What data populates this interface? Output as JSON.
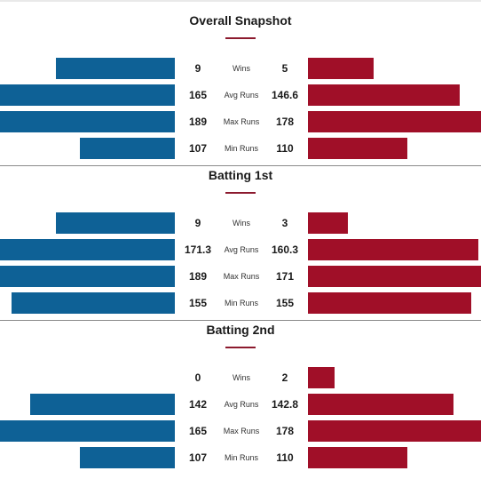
{
  "colors": {
    "left_team": "#0e6196",
    "right_team": "#a00f28",
    "title_accent": "#8c1a2e"
  },
  "chart_data": [
    {
      "type": "bar",
      "title": "Overall Snapshot",
      "categories": [
        "Wins",
        "Avg Runs",
        "Max Runs",
        "Min Runs"
      ],
      "series": [
        {
          "values": [
            9,
            165,
            189,
            107
          ]
        },
        {
          "values": [
            5,
            146.6,
            178,
            110
          ]
        }
      ]
    },
    {
      "type": "bar",
      "title": "Batting 1st",
      "categories": [
        "Wins",
        "Avg Runs",
        "Max Runs",
        "Min Runs"
      ],
      "series": [
        {
          "values": [
            9,
            171.3,
            189,
            155
          ]
        },
        {
          "values": [
            3,
            160.3,
            171,
            155
          ]
        }
      ]
    },
    {
      "type": "bar",
      "title": "Batting 2nd",
      "categories": [
        "Wins",
        "Avg Runs",
        "Max Runs",
        "Min Runs"
      ],
      "series": [
        {
          "values": [
            0,
            142,
            165,
            107
          ]
        },
        {
          "values": [
            2,
            142.8,
            178,
            110
          ]
        }
      ]
    }
  ]
}
